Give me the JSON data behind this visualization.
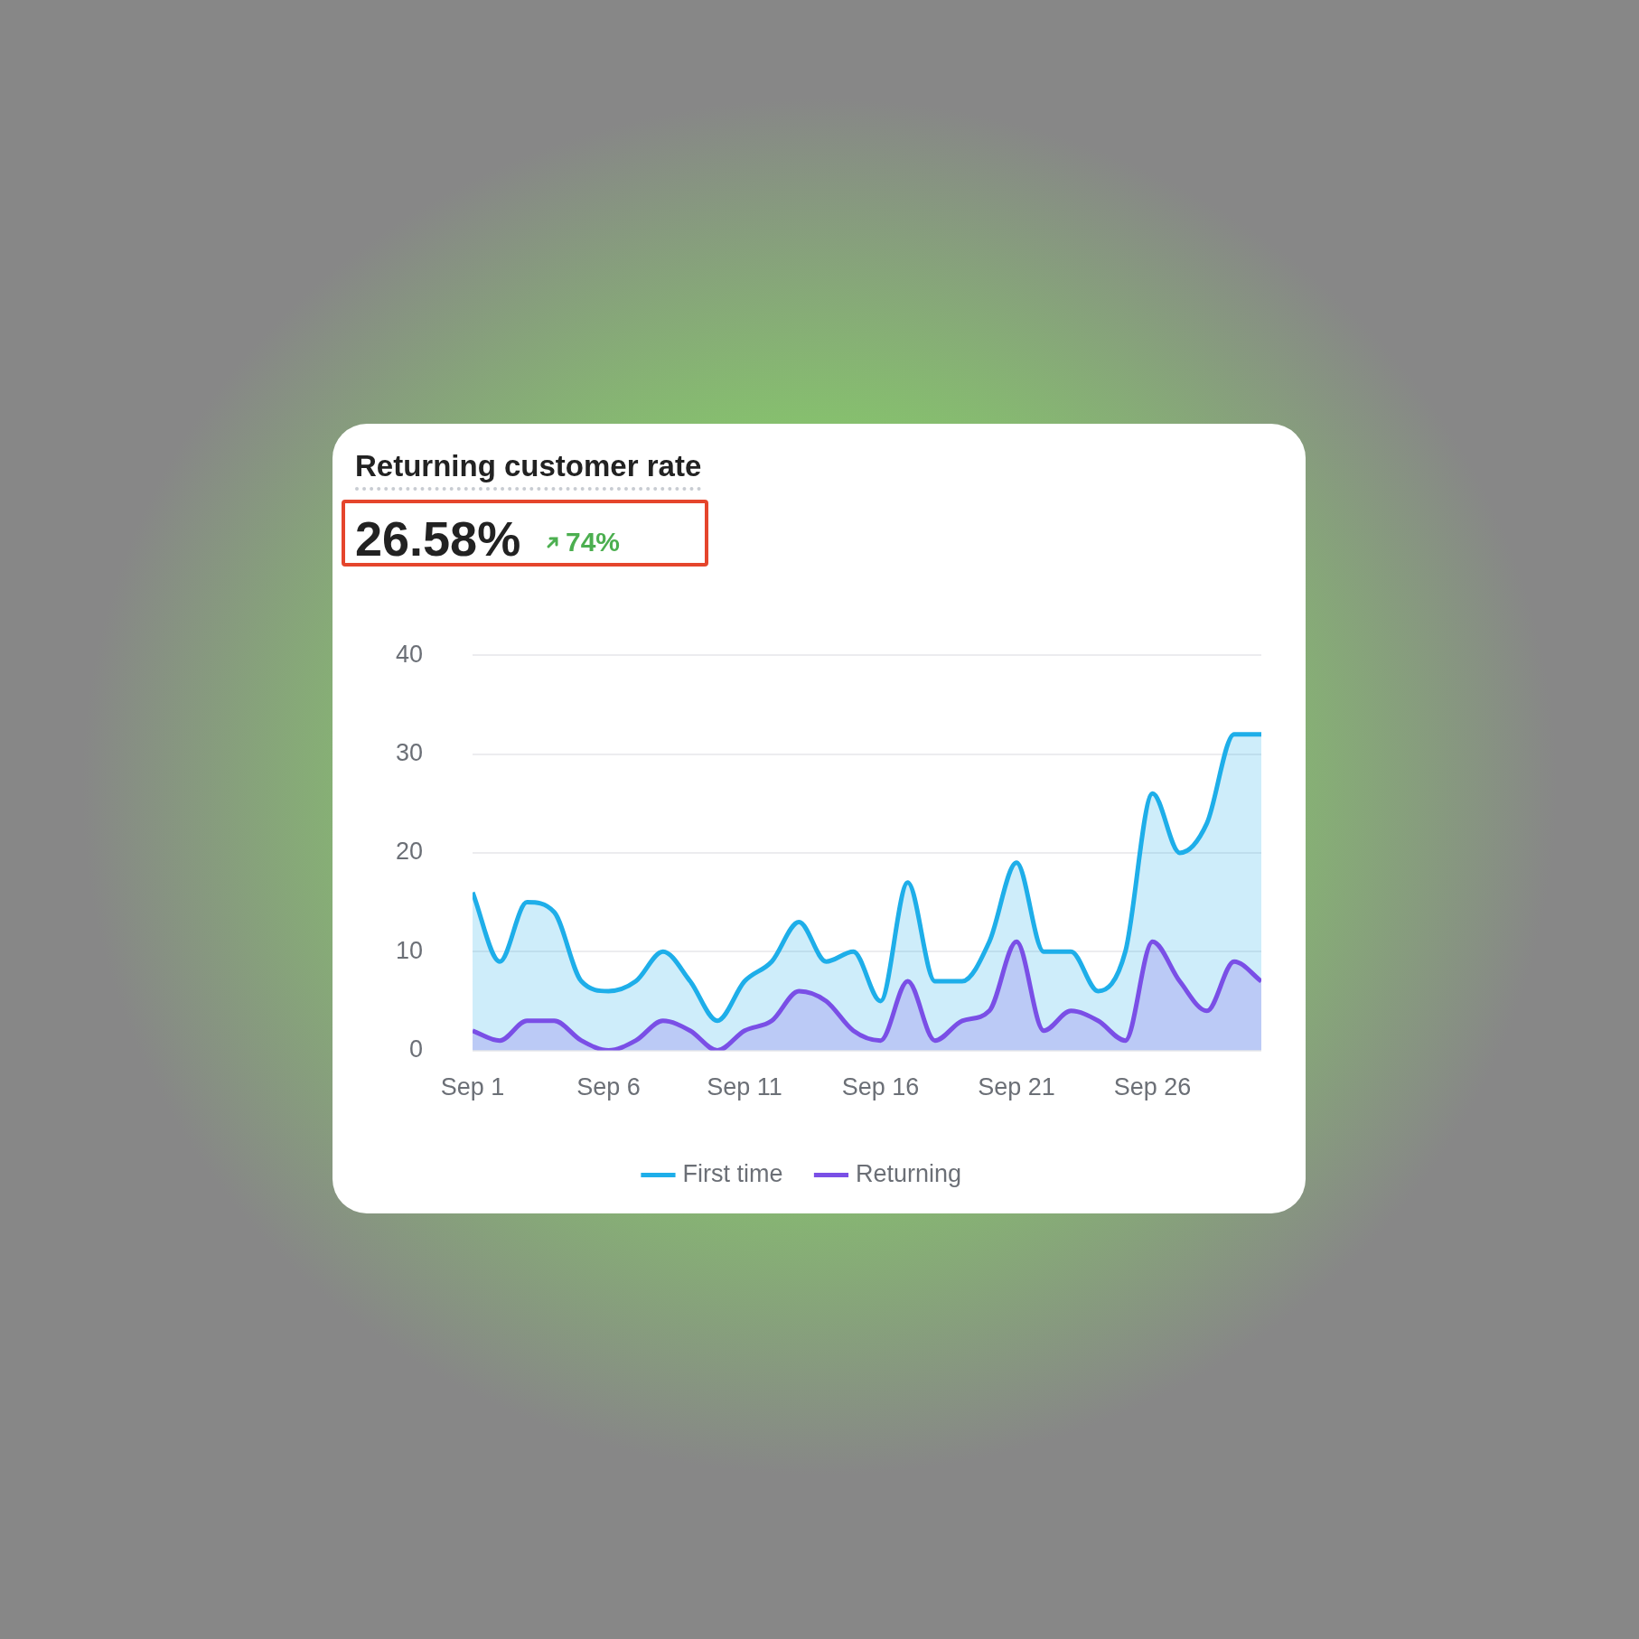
{
  "chart_data": {
    "type": "area",
    "title": "Returning customer rate",
    "annotations": [
      "26.58%",
      "74%"
    ],
    "x": [
      "--09-01",
      "--09-02",
      "--09-03",
      "--09-04",
      "--09-05",
      "--09-06",
      "--09-07",
      "--09-08",
      "--09-09",
      "--09-10",
      "--09-11",
      "--09-12",
      "--09-13",
      "--09-14",
      "--09-15",
      "--09-16",
      "--09-17",
      "--09-18",
      "--09-19",
      "--09-20",
      "--09-21",
      "--09-22",
      "--09-23",
      "--09-24",
      "--09-25",
      "--09-26",
      "--09-27",
      "--09-28",
      "--09-29",
      "--09-30"
    ],
    "series": [
      {
        "name": "First time",
        "color": "#1eaee9",
        "values": [
          16,
          9,
          15,
          14,
          7,
          6,
          7,
          10,
          7,
          3,
          7,
          9,
          13,
          9,
          10,
          5,
          17,
          7,
          7,
          11,
          19,
          10,
          10,
          6,
          10,
          26,
          20,
          23,
          32,
          32
        ]
      },
      {
        "name": "Returning",
        "color": "#7a4fe6",
        "values": [
          2,
          1,
          3,
          3,
          1,
          0,
          1,
          3,
          2,
          0,
          2,
          3,
          6,
          5,
          2,
          1,
          7,
          1,
          3,
          4,
          11,
          2,
          4,
          3,
          1,
          11,
          7,
          4,
          9,
          7
        ]
      }
    ],
    "xlim": [
      "--09-01",
      "--09-30"
    ],
    "xticks": [
      {
        "value": "--09-01",
        "label": "Sep 1"
      },
      {
        "value": "--09-06",
        "label": "Sep 6"
      },
      {
        "value": "--09-11",
        "label": "Sep 11"
      },
      {
        "value": "--09-16",
        "label": "Sep 16"
      },
      {
        "value": "--09-21",
        "label": "Sep 21"
      },
      {
        "value": "--09-26",
        "label": "Sep 26"
      }
    ],
    "ylim": [
      0,
      40
    ],
    "yticks": [
      0,
      10,
      20,
      30,
      40
    ],
    "grid": "y",
    "legend": "bottom",
    "marker": "none",
    "line_style": "solid"
  }
}
